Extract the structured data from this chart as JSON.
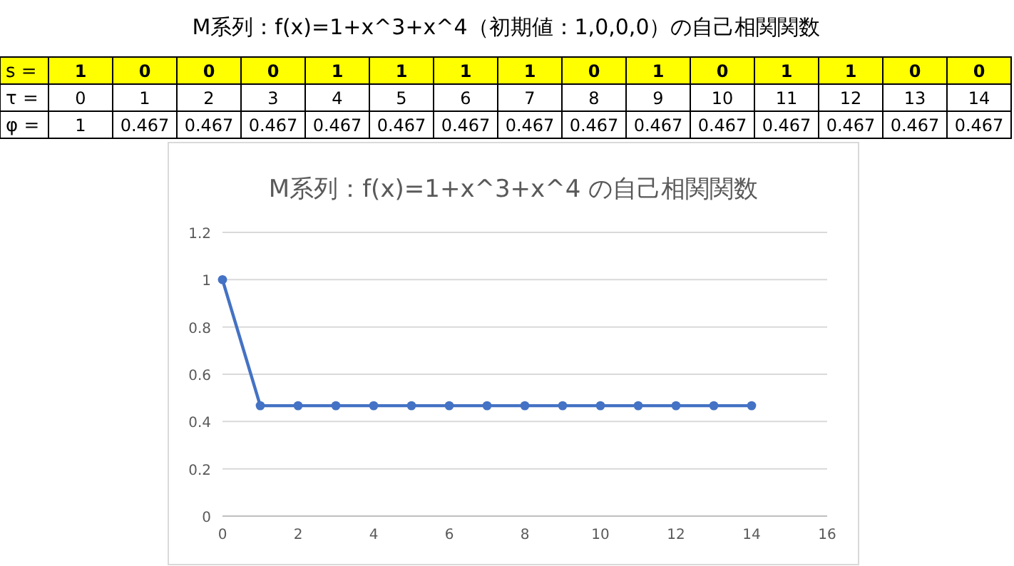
{
  "chart_data": [
    {
      "type": "heatmap",
      "data_labels": true,
      "title": "M系列：f(x)=1+x^3+x^4（初期値：1,0,0,0）の自己相関関数",
      "y_categories": [
        "s =",
        "τ =",
        "φ ="
      ],
      "colors": [
        "#ffff00",
        "#ffffff",
        "#ffffff"
      ],
      "categories": [
        null,
        null,
        null,
        null,
        null,
        null,
        null,
        null,
        null,
        null,
        null,
        null,
        null,
        null,
        null
      ],
      "cells": [
        [
          1,
          0,
          0,
          0,
          1,
          1,
          1,
          1,
          0,
          1,
          0,
          1,
          1,
          0,
          0
        ],
        [
          0,
          1,
          2,
          3,
          4,
          5,
          6,
          7,
          8,
          9,
          10,
          11,
          12,
          13,
          14
        ],
        [
          1,
          0.467,
          0.467,
          0.467,
          0.467,
          0.467,
          0.467,
          0.467,
          0.467,
          0.467,
          0.467,
          0.467,
          0.467,
          0.467,
          0.467
        ]
      ]
    },
    {
      "type": "line",
      "title": "M系列：f(x)=1+x^3+x^4 の自己相関関数",
      "x": [
        0,
        1,
        2,
        3,
        4,
        5,
        6,
        7,
        8,
        9,
        10,
        11,
        12,
        13,
        14
      ],
      "series": [
        {
          "color": "#4472c4",
          "values": [
            1,
            0.467,
            0.467,
            0.467,
            0.467,
            0.467,
            0.467,
            0.467,
            0.467,
            0.467,
            0.467,
            0.467,
            0.467,
            0.467,
            0.467
          ]
        }
      ],
      "xlim": [
        0,
        16
      ],
      "xticks": [
        0,
        2,
        4,
        6,
        8,
        10,
        12,
        14,
        16
      ],
      "ylim": [
        0,
        1.2
      ],
      "yticks": [
        0,
        0.2,
        0.4,
        0.6,
        0.8,
        1,
        1.2
      ],
      "grid": "y",
      "marker": "circle",
      "line_style": "solid"
    }
  ]
}
